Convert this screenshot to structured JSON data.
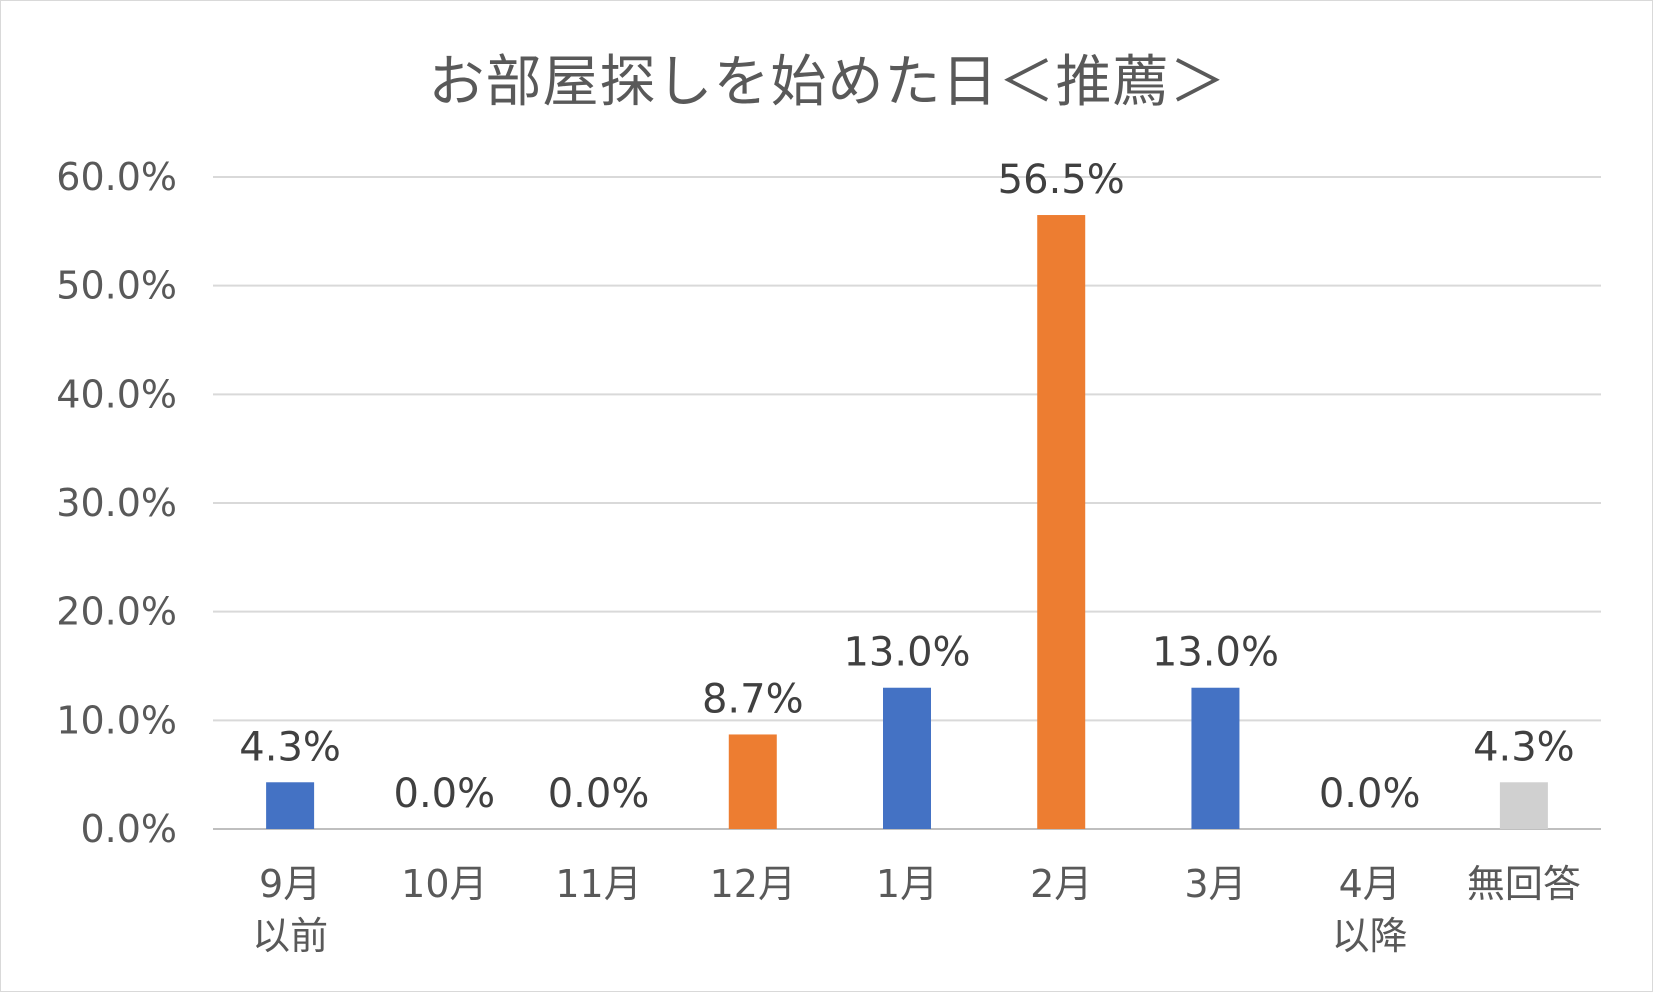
{
  "chart_data": {
    "type": "bar",
    "title": "お部屋探しを始めた日＜推薦＞",
    "categories": [
      "9月\n以前",
      "10月",
      "11月",
      "12月",
      "1月",
      "2月",
      "3月",
      "4月\n以降",
      "無回答"
    ],
    "values": [
      4.3,
      0.0,
      0.0,
      8.7,
      13.0,
      56.5,
      13.0,
      0.0,
      4.3
    ],
    "data_labels": [
      "4.3%",
      "0.0%",
      "0.0%",
      "8.7%",
      "13.0%",
      "56.5%",
      "13.0%",
      "0.0%",
      "4.3%"
    ],
    "bar_colors": [
      "#4472C4",
      "#4472C4",
      "#4472C4",
      "#ED7D31",
      "#4472C4",
      "#ED7D31",
      "#4472C4",
      "#4472C4",
      "#D0D0D0"
    ],
    "ylim": [
      0,
      60
    ],
    "yticks": [
      "0.0%",
      "10.0%",
      "20.0%",
      "30.0%",
      "40.0%",
      "50.0%",
      "60.0%"
    ],
    "grid": true,
    "xlabel": "",
    "ylabel": ""
  }
}
